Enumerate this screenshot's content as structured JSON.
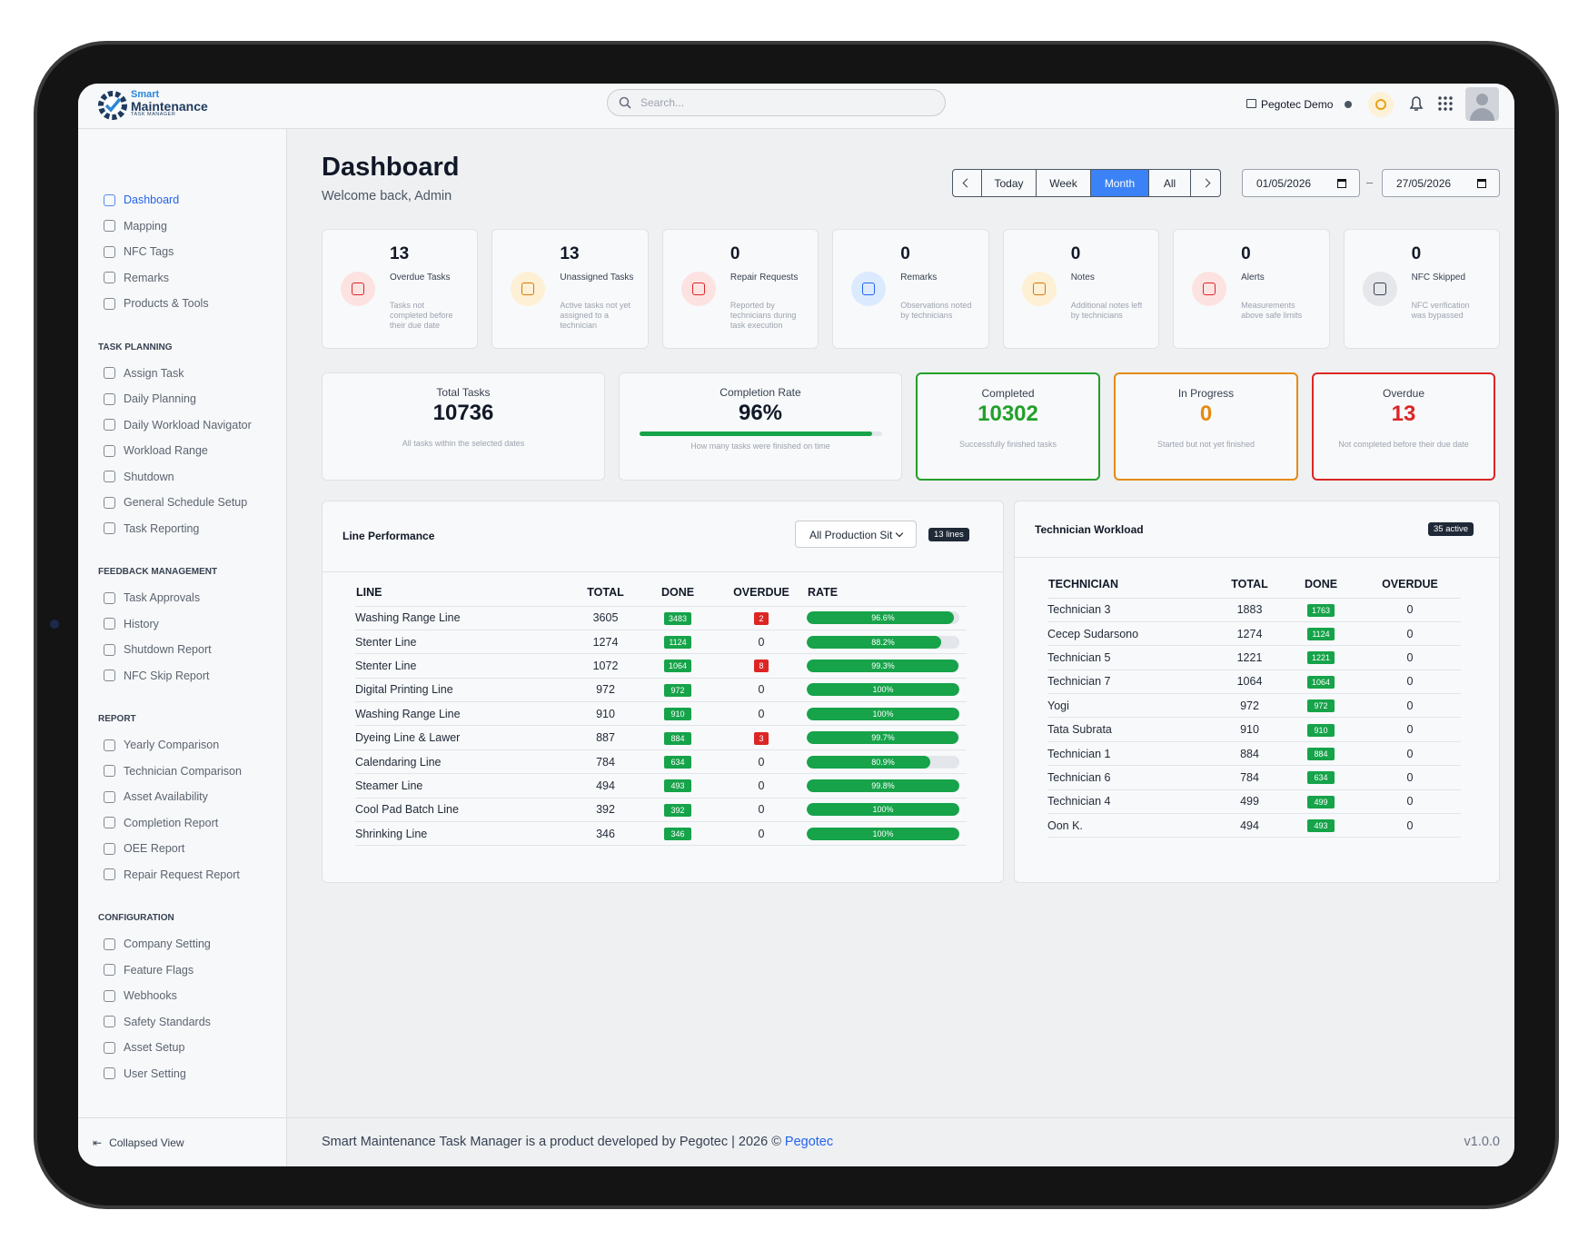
{
  "header": {
    "logo_line1": "Smart",
    "logo_line2": "Maintenance",
    "logo_line3": "TASK MANAGER",
    "search_placeholder": "Search...",
    "company": "Pegotec Demo"
  },
  "sidebar": {
    "main_items": [
      "Dashboard",
      "Mapping",
      "NFC Tags",
      "Remarks",
      "Products & Tools"
    ],
    "sections": [
      {
        "title": "TASK PLANNING",
        "items": [
          "Assign Task",
          "Daily Planning",
          "Daily Workload Navigator",
          "Workload Range",
          "Shutdown",
          "General Schedule Setup",
          "Task Reporting"
        ]
      },
      {
        "title": "FEEDBACK MANAGEMENT",
        "items": [
          "Task Approvals",
          "History",
          "Shutdown Report",
          "NFC Skip Report"
        ]
      },
      {
        "title": "REPORT",
        "items": [
          "Yearly Comparison",
          "Technician Comparison",
          "Asset Availability",
          "Completion Report",
          "OEE Report",
          "Repair Request Report"
        ]
      },
      {
        "title": "CONFIGURATION",
        "items": [
          "Company Setting",
          "Feature Flags",
          "Webhooks",
          "Safety Standards",
          "Asset Setup",
          "User Setting"
        ]
      }
    ],
    "collapse": "Collapsed View"
  },
  "page": {
    "title": "Dashboard",
    "subtitle": "Welcome back, Admin"
  },
  "date_filter": {
    "buttons": [
      "Today",
      "Week",
      "Month",
      "All"
    ],
    "active": "Month",
    "start": "01/05/2026",
    "separator": "–",
    "end": "27/05/2026"
  },
  "stat_cards": [
    {
      "value": 13,
      "title": "Overdue Tasks",
      "description": "Tasks not completed before their due date"
    },
    {
      "value": 13,
      "title": "Unassigned Tasks",
      "description": "Active tasks not yet assigned to a technician"
    },
    {
      "value": 0,
      "title": "Repair Requests",
      "description": "Reported by technicians during task execution"
    },
    {
      "value": 0,
      "title": "Remarks",
      "description": "Observations noted by technicians"
    },
    {
      "value": 0,
      "title": "Notes",
      "description": "Additional notes left by technicians"
    },
    {
      "value": 0,
      "title": "Alerts",
      "description": "Measurements above safe limits"
    },
    {
      "value": 0,
      "title": "NFC Skipped",
      "description": "NFC verification was bypassed"
    }
  ],
  "summary": {
    "total": {
      "label": "Total Tasks",
      "value": 10736,
      "note": "All tasks within the selected dates"
    },
    "completion_rate": {
      "label": "Completion Rate",
      "value": {
        "value": 96,
        "label": "96%"
      },
      "note": "How many tasks were finished on time"
    },
    "completed": {
      "label": "Completed",
      "value": 10302,
      "note": "Successfully finished tasks"
    },
    "in_progress": {
      "label": "In Progress",
      "value": 0,
      "note": "Started but not yet finished"
    },
    "overdue": {
      "label": "Overdue",
      "value": 13,
      "note": "Not completed before their due date"
    }
  },
  "line_performance": {
    "title": "Line Performance",
    "filter": "All Production Sit",
    "badge": "13 lines",
    "columns": [
      "LINE",
      "TOTAL",
      "DONE",
      "OVERDUE",
      "RATE"
    ],
    "rows": [
      [
        "Washing Range Line",
        3605,
        3483,
        2,
        {
          "value": 96.6,
          "label": "96.6%"
        }
      ],
      [
        "Stenter Line",
        1274,
        1124,
        0,
        {
          "value": 88.2,
          "label": "88.2%"
        }
      ],
      [
        "Stenter Line",
        1072,
        1064,
        8,
        {
          "value": 99.3,
          "label": "99.3%"
        }
      ],
      [
        "Digital Printing Line",
        972,
        972,
        0,
        {
          "value": 100,
          "label": "100%"
        }
      ],
      [
        "Washing Range Line",
        910,
        910,
        0,
        {
          "value": 100,
          "label": "100%"
        }
      ],
      [
        "Dyeing Line & Lawer",
        887,
        884,
        3,
        {
          "value": 99.7,
          "label": "99.7%"
        }
      ],
      [
        "Calendaring Line",
        784,
        634,
        0,
        {
          "value": 80.9,
          "label": "80.9%"
        }
      ],
      [
        "Steamer Line",
        494,
        493,
        0,
        {
          "value": 99.8,
          "label": "99.8%"
        }
      ],
      [
        "Cool Pad Batch Line",
        392,
        392,
        0,
        {
          "value": 100,
          "label": "100%"
        }
      ],
      [
        "Shrinking Line",
        346,
        346,
        0,
        {
          "value": 100,
          "label": "100%"
        }
      ]
    ]
  },
  "technician_workload": {
    "title": "Technician Workload",
    "badge": "35 active",
    "columns": [
      "TECHNICIAN",
      "TOTAL",
      "DONE",
      "OVERDUE"
    ],
    "rows": [
      [
        "Technician 3",
        1883,
        1763,
        0
      ],
      [
        "Cecep Sudarsono",
        1274,
        1124,
        0
      ],
      [
        "Technician 5",
        1221,
        1221,
        0
      ],
      [
        "Technician 7",
        1064,
        1064,
        0
      ],
      [
        "Yogi",
        972,
        972,
        0
      ],
      [
        "Tata Subrata",
        910,
        910,
        0
      ],
      [
        "Technician 1",
        884,
        884,
        0
      ],
      [
        "Technician 6",
        784,
        634,
        0
      ],
      [
        "Technician 4",
        499,
        499,
        0
      ],
      [
        "Oon K.",
        494,
        493,
        0
      ]
    ]
  },
  "footer": {
    "text": "Smart Maintenance Task Manager is a product developed by Pegotec | 2026 ©",
    "link": "Pegotec",
    "version": "v1.0.0"
  }
}
